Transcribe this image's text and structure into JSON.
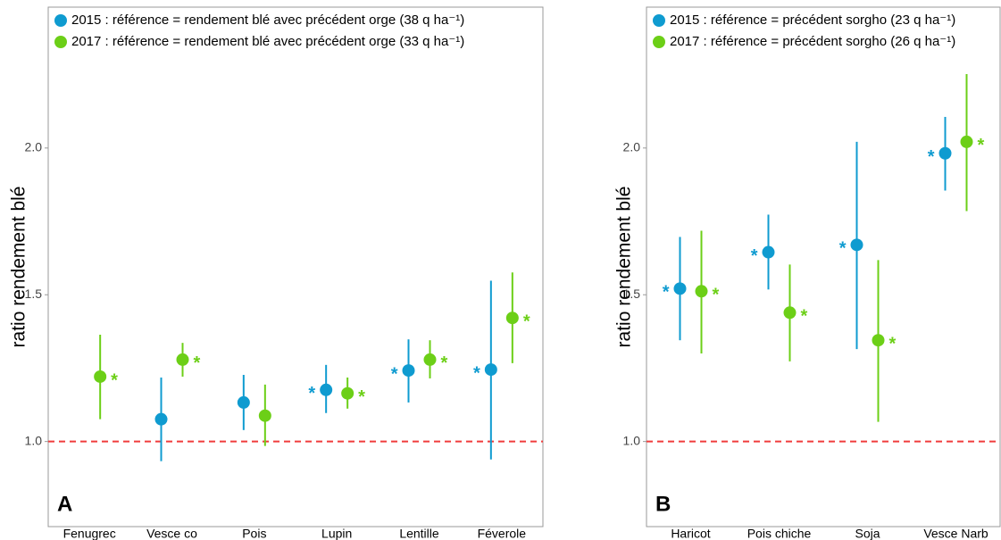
{
  "chart_data": [
    {
      "type": "dot",
      "panel_label": "A",
      "y_label": "ratio rendement blé",
      "categories": [
        "Fenugrec",
        "Vesce co",
        "Pois",
        "Lupin",
        "Lentille",
        "Féverole"
      ],
      "ylim": [
        0.71,
        2.48
      ],
      "yticks": [
        {
          "value": 1,
          "label": "1.0"
        },
        {
          "value": 1.5,
          "label": "1.5"
        },
        {
          "value": 2,
          "label": "2.0"
        }
      ],
      "reference_line": 1,
      "reference_color": "#f03c3c",
      "series": [
        {
          "name": "2015 : référence = rendement blé avec précédent orge (38 q ha⁻¹)",
          "color": "#0f9bd0",
          "values": [
            null,
            1.076,
            1.133,
            1.176,
            1.242,
            1.245
          ],
          "low": [
            null,
            0.933,
            1.039,
            1.097,
            1.133,
            0.939
          ],
          "high": [
            null,
            1.218,
            1.227,
            1.261,
            1.348,
            1.548
          ],
          "stars": [
            null,
            null,
            null,
            "*",
            "*",
            "*"
          ]
        },
        {
          "name": "2017 : référence = rendement blé avec précédent orge (33 q ha⁻¹)",
          "color": "#6ccf17",
          "values": [
            1.221,
            1.279,
            1.088,
            1.164,
            1.279,
            1.421
          ],
          "low": [
            1.076,
            1.221,
            0.985,
            1.112,
            1.215,
            1.267
          ],
          "high": [
            1.364,
            1.336,
            1.194,
            1.218,
            1.345,
            1.576
          ],
          "stars": [
            "*",
            "*",
            null,
            "*",
            "*",
            "*"
          ]
        }
      ]
    },
    {
      "type": "dot",
      "panel_label": "B",
      "y_label": "ratio rendement blé",
      "categories": [
        "Haricot",
        "Pois chiche",
        "Soja",
        "Vesce Narb"
      ],
      "ylim": [
        0.71,
        2.48
      ],
      "yticks": [
        {
          "value": 1,
          "label": "1.0"
        },
        {
          "value": 1.5,
          "label": "1.5"
        },
        {
          "value": 2,
          "label": "2.0"
        }
      ],
      "reference_line": 1,
      "reference_color": "#f03c3c",
      "series": [
        {
          "name": "2015 : référence = précédent sorgho (23 q ha⁻¹)",
          "color": "#0f9bd0",
          "values": [
            1.521,
            1.645,
            1.67,
            1.982
          ],
          "low": [
            1.345,
            1.518,
            1.315,
            1.855
          ],
          "high": [
            1.697,
            1.773,
            2.021,
            2.106
          ],
          "stars": [
            "*",
            "*",
            "*",
            "*"
          ]
        },
        {
          "name": "2017 : référence = précédent sorgho (26 q ha⁻¹)",
          "color": "#6ccf17",
          "values": [
            1.512,
            1.439,
            1.345,
            2.021
          ],
          "low": [
            1.3,
            1.273,
            1.067,
            1.785
          ],
          "high": [
            1.718,
            1.603,
            1.618,
            2.252
          ],
          "stars": [
            "*",
            "*",
            "*",
            "*"
          ]
        }
      ]
    }
  ]
}
